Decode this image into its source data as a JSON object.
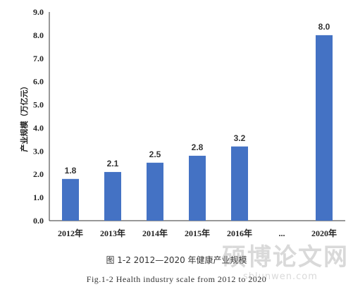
{
  "chart_data": {
    "type": "bar",
    "title": "",
    "xlabel": "",
    "ylabel": "产业规模（万亿元）",
    "ylim": [
      0,
      9
    ],
    "yticks": [
      "0.0",
      "1.0",
      "2.0",
      "3.0",
      "4.0",
      "5.0",
      "6.0",
      "7.0",
      "8.0",
      "9.0"
    ],
    "categories": [
      "2012年",
      "2013年",
      "2014年",
      "2015年",
      "2016年",
      "...",
      "2020年"
    ],
    "values": [
      1.8,
      2.1,
      2.5,
      2.8,
      3.2,
      null,
      8.0
    ],
    "data_labels": [
      "1.8",
      "2.1",
      "2.5",
      "2.8",
      "3.2",
      "",
      "8.0"
    ],
    "bar_color": "#4472C4",
    "grid": false,
    "legend": "none"
  },
  "caption": {
    "cn": "图 1-2  2012—2020 年健康产业规模",
    "en": "Fig.1-2  Health industry scale from 2012 to 2020"
  },
  "watermark": {
    "main": "硕博论文网",
    "sub": "sblunwen.com"
  }
}
